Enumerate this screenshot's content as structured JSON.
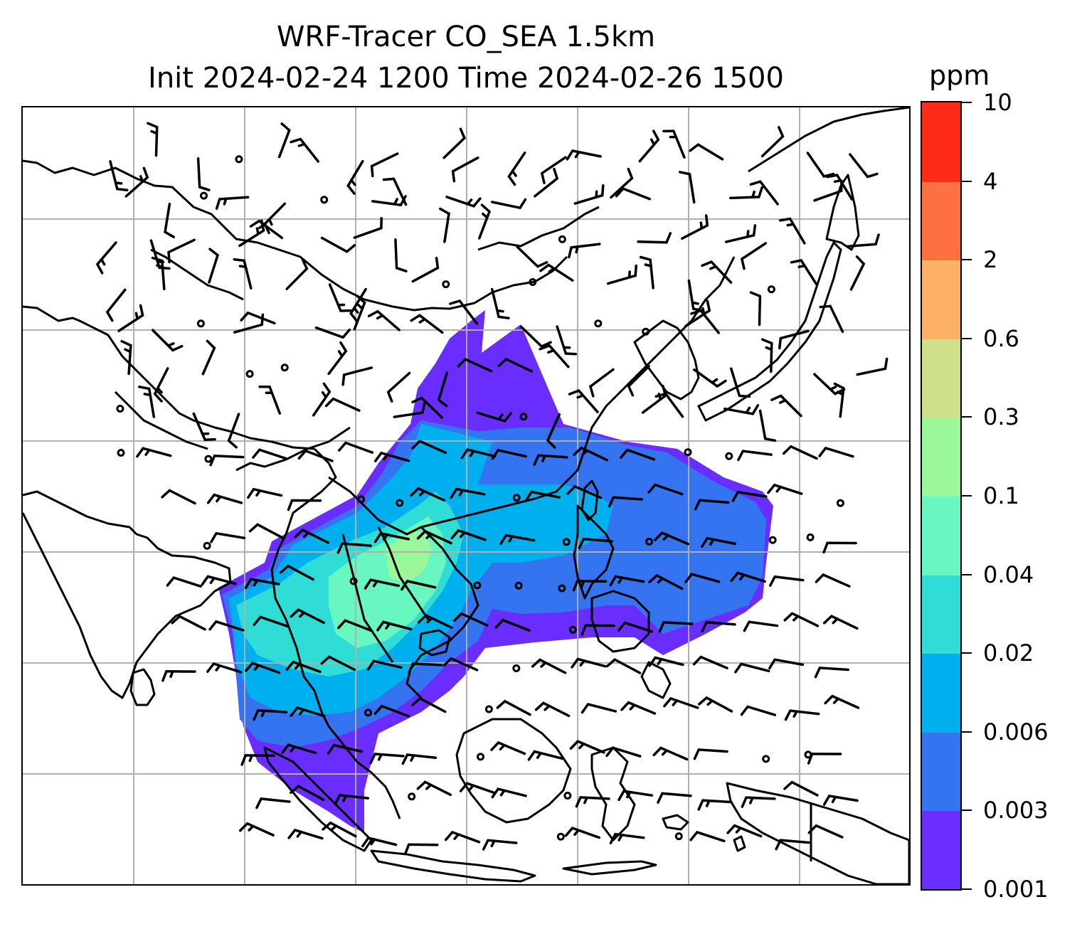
{
  "title": {
    "line1": "WRF-Tracer CO_SEA 1.5km",
    "line2": "Init 2024-02-24 1200 Time 2024-02-26 1500"
  },
  "colorbar": {
    "unit": "ppm",
    "levels": [
      "0.001",
      "0.003",
      "0.006",
      "0.02",
      "0.04",
      "0.1",
      "0.3",
      "0.6",
      "2",
      "4",
      "10"
    ],
    "colors": [
      "#6a2dff",
      "#3474f0",
      "#00b0ee",
      "#2fdcd6",
      "#68f7c0",
      "#9af79a",
      "#cfe08a",
      "#fdb165",
      "#ff7040",
      "#ff2a17"
    ]
  },
  "map": {
    "gridlines": true,
    "overlay": "wind barbs",
    "shading": "CO tracer concentration"
  }
}
